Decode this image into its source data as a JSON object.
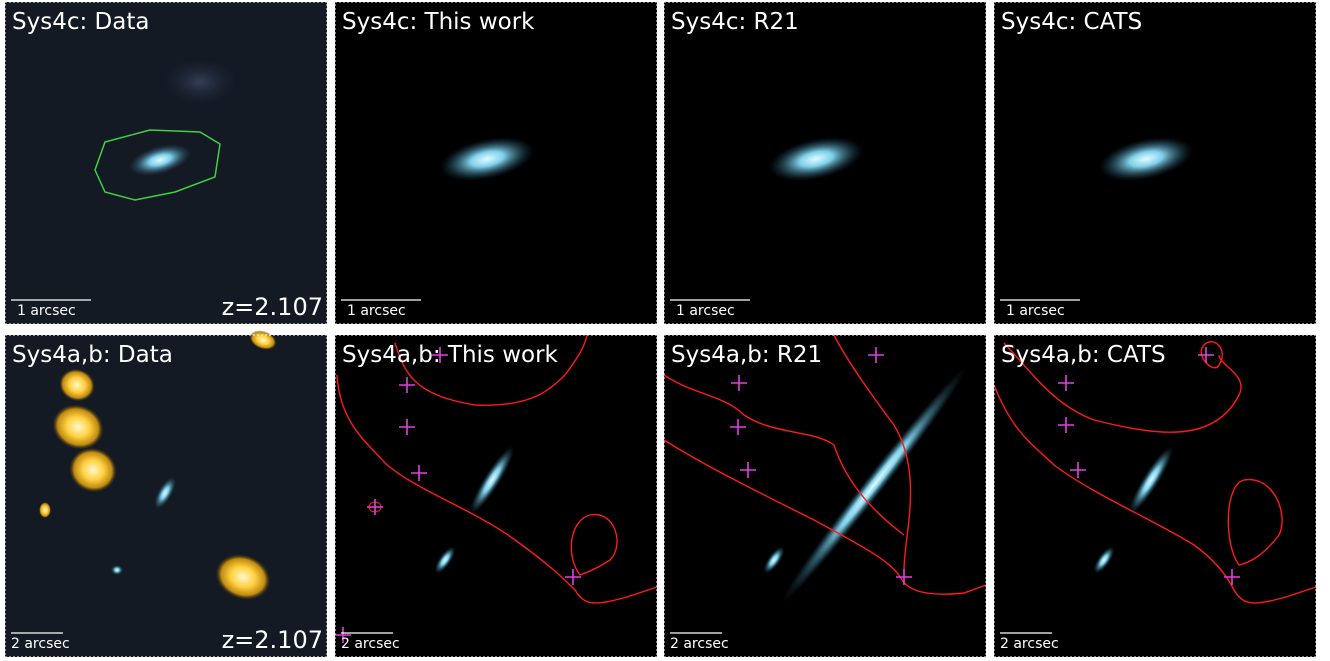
{
  "panels": [
    {
      "title": "Sys4c: Data",
      "scale": "1 arcsec",
      "redshift": "z=2.107"
    },
    {
      "title": "Sys4c: This work",
      "scale": "1 arcsec"
    },
    {
      "title": "Sys4c: R21",
      "scale": "1 arcsec"
    },
    {
      "title": "Sys4c: CATS",
      "scale": "1 arcsec"
    },
    {
      "title": "Sys4a,b: Data",
      "scale": "2 arcsec",
      "redshift": "z=2.107"
    },
    {
      "title": "Sys4a,b: This work",
      "scale": "2 arcsec"
    },
    {
      "title": "Sys4a,b: R21",
      "scale": "2 arcsec"
    },
    {
      "title": "Sys4a,b: CATS",
      "scale": "2 arcsec"
    }
  ]
}
